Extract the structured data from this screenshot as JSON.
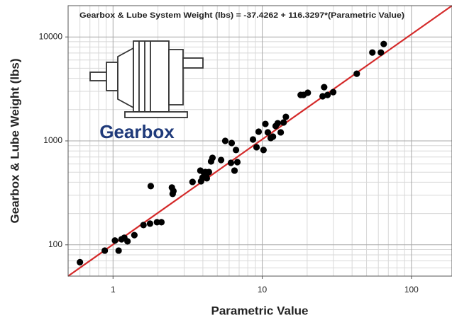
{
  "chart_data": {
    "type": "scatter",
    "annotation": "Gearbox & Lube System Weight (lbs) = -37.4262 + 116.3297*(Parametric Value)",
    "image_label": "Gearbox",
    "xlabel": "Parametric Value",
    "ylabel": "Gearbox & Lube Weight (lbs)",
    "xscale": "log",
    "yscale": "log",
    "grid": true,
    "xlim": [
      0.5,
      187
    ],
    "ylim": [
      50,
      20000
    ],
    "xticks": [
      1,
      10,
      100
    ],
    "yticks": [
      100,
      1000,
      10000
    ],
    "xminor": [
      0.5,
      0.6,
      0.7,
      0.8,
      0.9,
      2,
      3,
      4,
      5,
      6,
      7,
      8,
      9,
      20,
      30,
      40,
      50,
      60,
      70,
      80,
      90
    ],
    "yminor": [
      50,
      60,
      70,
      80,
      90,
      200,
      300,
      400,
      500,
      600,
      700,
      800,
      900,
      2000,
      3000,
      4000,
      5000,
      6000,
      7000,
      8000,
      9000
    ],
    "color": "#000000",
    "fit_line": {
      "x": [
        0.5,
        187
      ],
      "y": [
        50,
        20000
      ],
      "color": "#d42a2a"
    },
    "x": [
      0.6,
      0.88,
      1.03,
      1.09,
      1.14,
      1.19,
      1.25,
      1.39,
      1.6,
      1.77,
      1.97,
      2.11,
      1.79,
      2.48,
      2.54,
      2.51,
      3.41,
      3.85,
      3.89,
      3.98,
      4.07,
      4.21,
      4.25,
      4.16,
      4.39,
      4.54,
      4.64,
      5.3,
      5.65,
      6.24,
      6.67,
      6.17,
      6.52,
      6.81,
      8.67,
      9.16,
      9.46,
      10.2,
      10.5,
      10.9,
      11.4,
      11.8,
      12.3,
      12.7,
      13.3,
      13.9,
      14.4,
      18.1,
      18.9,
      20.2,
      25.4,
      26.0,
      27.4,
      29.9,
      43.0,
      54.7,
      62.4,
      65.2
    ],
    "values": [
      68,
      88,
      110,
      88,
      113,
      117,
      108,
      124,
      155,
      160,
      165,
      165,
      367,
      356,
      329,
      309,
      403,
      518,
      409,
      443,
      494,
      465,
      436,
      502,
      502,
      635,
      687,
      655,
      1000,
      954,
      817,
      615,
      518,
      625,
      1032,
      869,
      1227,
      817,
      1456,
      1208,
      1064,
      1099,
      1390,
      1479,
      1208,
      1503,
      1703,
      2767,
      2767,
      2904,
      2685,
      3289,
      2767,
      2944,
      4426,
      7083,
      7083,
      8551
    ]
  }
}
